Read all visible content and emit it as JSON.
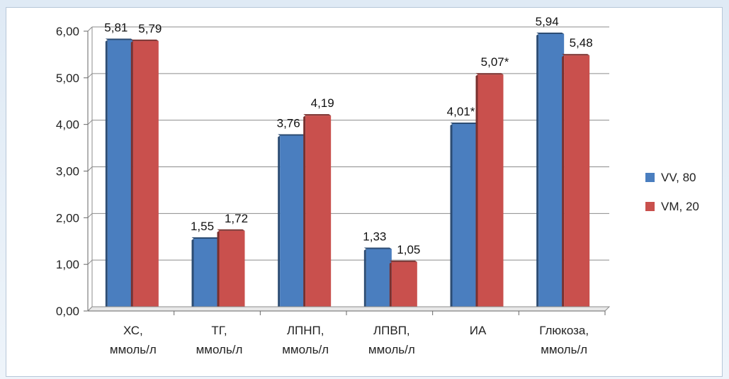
{
  "chart_data": {
    "type": "bar",
    "categories": [
      [
        "ХС,",
        "ммоль/л"
      ],
      [
        "ТГ,",
        "ммоль/л"
      ],
      [
        "ЛПНП,",
        "ммоль/л"
      ],
      [
        "ЛПВП,",
        "ммоль/л"
      ],
      [
        "ИА"
      ],
      [
        "Глюкоза,",
        "ммоль/л"
      ]
    ],
    "series": [
      {
        "name": "VV, 80",
        "color": "#4a7ebf",
        "values": [
          5.81,
          1.55,
          3.76,
          1.33,
          4.01,
          5.94
        ],
        "labels": [
          "5,81",
          "1,55",
          "3,76",
          "1,33",
          "4,01*",
          "5,94"
        ]
      },
      {
        "name": "VM, 20",
        "color": "#c9504d",
        "values": [
          5.79,
          1.72,
          4.19,
          1.05,
          5.07,
          5.48
        ],
        "labels": [
          "5,79",
          "1,72",
          "4,19",
          "1,05",
          "5,07*",
          "5,48"
        ]
      }
    ],
    "y_ticks": [
      "0,00",
      "1,00",
      "2,00",
      "3,00",
      "4,00",
      "5,00",
      "6,00"
    ],
    "ylim": [
      0,
      6
    ],
    "grid": true,
    "legend_position": "right"
  }
}
